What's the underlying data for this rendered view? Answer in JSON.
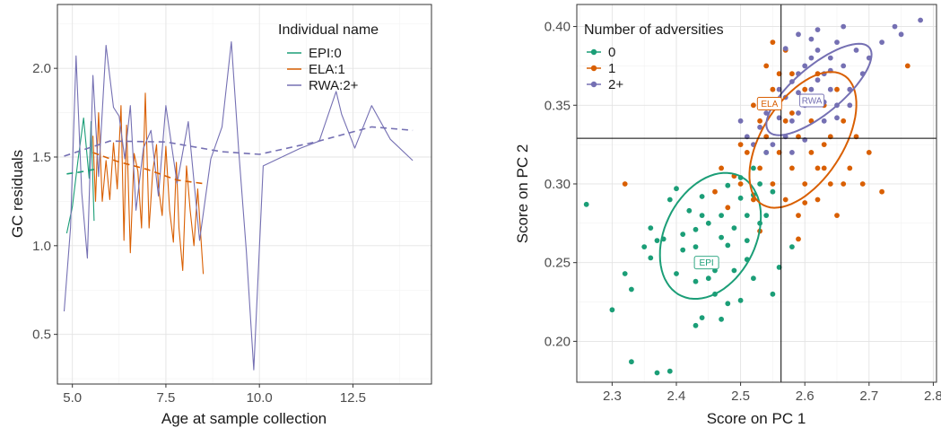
{
  "colors": {
    "EPI": "#1b9e77",
    "ELA": "#d95f02",
    "RWA": "#7570b3",
    "text": "#1a1a1a",
    "tick": "#4d4d4d",
    "grid": "#e3e3e3"
  },
  "chart_data": [
    {
      "type": "line",
      "xlabel": "Age at sample collection",
      "ylabel": "GC residuals",
      "xlim": [
        4.6,
        14.6
      ],
      "ylim": [
        0.22,
        2.36
      ],
      "xticks": [
        5.0,
        7.5,
        10.0,
        12.5
      ],
      "xtick_labels": [
        "5.0",
        "7.5",
        "10.0",
        "12.5"
      ],
      "yticks": [
        0.5,
        1.0,
        1.5,
        2.0
      ],
      "ytick_labels": [
        "0.5",
        "1.0",
        "1.5",
        "2.0"
      ],
      "grid": true,
      "legend": {
        "title": "Individual name",
        "position": "top-right"
      },
      "series": [
        {
          "name": "EPI:0",
          "color_key": "EPI",
          "x": [
            4.85,
            5.0,
            5.15,
            5.3,
            5.45,
            5.5,
            5.58
          ],
          "y": [
            1.07,
            1.22,
            1.48,
            1.72,
            1.38,
            1.7,
            1.14
          ],
          "trend_x": [
            4.85,
            5.2,
            5.58
          ],
          "trend_y": [
            1.405,
            1.415,
            1.43
          ]
        },
        {
          "name": "ELA:1",
          "color_key": "ELA",
          "x": [
            5.55,
            5.62,
            5.7,
            5.8,
            5.9,
            6.0,
            6.1,
            6.2,
            6.3,
            6.38,
            6.45,
            6.55,
            6.65,
            6.75,
            6.85,
            6.95,
            7.05,
            7.15,
            7.25,
            7.3,
            7.4,
            7.5,
            7.6,
            7.7,
            7.78,
            7.85,
            7.95,
            8.05,
            8.15,
            8.25,
            8.35,
            8.5
          ],
          "y": [
            1.62,
            1.25,
            1.75,
            1.25,
            1.48,
            1.26,
            1.58,
            1.32,
            1.79,
            1.03,
            1.68,
            0.96,
            1.52,
            1.42,
            1.1,
            1.86,
            1.1,
            1.42,
            1.57,
            1.33,
            1.17,
            1.56,
            1.2,
            1.02,
            1.47,
            1.1,
            0.86,
            1.45,
            1.2,
            1.0,
            1.32,
            0.84
          ],
          "trend_x": [
            5.55,
            6.2,
            7.0,
            7.8,
            8.5
          ],
          "trend_y": [
            1.525,
            1.475,
            1.43,
            1.37,
            1.35
          ]
        },
        {
          "name": "RWA:2+",
          "color_key": "RWA",
          "x": [
            4.78,
            4.95,
            5.1,
            5.25,
            5.4,
            5.55,
            5.7,
            5.9,
            6.1,
            6.25,
            6.4,
            6.55,
            6.7,
            6.9,
            7.1,
            7.3,
            7.5,
            7.8,
            8.1,
            8.4,
            8.7,
            9.0,
            9.25,
            9.45,
            9.65,
            9.85,
            10.1,
            10.6,
            11.1,
            11.6,
            12.05,
            12.2,
            12.55,
            13.0,
            13.5,
            14.1
          ],
          "y": [
            0.63,
            1.1,
            2.07,
            1.3,
            0.93,
            1.96,
            1.39,
            2.13,
            1.78,
            1.73,
            1.49,
            1.79,
            1.2,
            1.55,
            1.65,
            1.28,
            1.79,
            1.35,
            1.7,
            1.03,
            1.49,
            1.67,
            2.15,
            1.53,
            0.97,
            0.3,
            1.45,
            1.5,
            1.55,
            1.59,
            1.87,
            1.74,
            1.55,
            1.79,
            1.6,
            1.48
          ],
          "trend_x": [
            4.78,
            6.0,
            7.5,
            9.0,
            10.0,
            11.5,
            13.0,
            14.1
          ],
          "trend_y": [
            1.505,
            1.59,
            1.585,
            1.53,
            1.515,
            1.585,
            1.67,
            1.65
          ]
        }
      ]
    },
    {
      "type": "scatter",
      "xlabel": "Score on PC 1",
      "ylabel": "Score on PC 2",
      "xlim": [
        2.245,
        2.805
      ],
      "ylim": [
        0.174,
        0.414
      ],
      "xticks": [
        2.3,
        2.4,
        2.5,
        2.6,
        2.7,
        2.8
      ],
      "xtick_labels": [
        "2.3",
        "2.4",
        "2.5",
        "2.6",
        "2.7",
        "2.8"
      ],
      "yticks": [
        0.2,
        0.25,
        0.3,
        0.35,
        0.4
      ],
      "ytick_labels": [
        "0.20",
        "0.25",
        "0.30",
        "0.35",
        "0.40"
      ],
      "grid": true,
      "vline": 2.563,
      "hline": 0.329,
      "legend": {
        "title": "Number of adversities",
        "position": "top-left"
      },
      "series": [
        {
          "name": "0",
          "color_key": "EPI",
          "ellipse_label": "EPI",
          "label_xy": [
            2.447,
            0.25
          ],
          "ellipse": {
            "cx": 2.453,
            "cy": 0.267,
            "rx": 0.1,
            "ry": 0.07,
            "angle_deg": 60
          },
          "points": [
            [
              2.26,
              0.287
            ],
            [
              2.33,
              0.187
            ],
            [
              2.37,
              0.18
            ],
            [
              2.39,
              0.181
            ],
            [
              2.36,
              0.272
            ],
            [
              2.37,
              0.264
            ],
            [
              2.38,
              0.265
            ],
            [
              2.39,
              0.29
            ],
            [
              2.4,
              0.297
            ],
            [
              2.41,
              0.258
            ],
            [
              2.42,
              0.283
            ],
            [
              2.43,
              0.26
            ],
            [
              2.43,
              0.271
            ],
            [
              2.44,
              0.292
            ],
            [
              2.44,
              0.28
            ],
            [
              2.45,
              0.275
            ],
            [
              2.46,
              0.252
            ],
            [
              2.47,
              0.266
            ],
            [
              2.47,
              0.28
            ],
            [
              2.48,
              0.261
            ],
            [
              2.48,
              0.299
            ],
            [
              2.49,
              0.272
            ],
            [
              2.5,
              0.304
            ],
            [
              2.5,
              0.291
            ],
            [
              2.51,
              0.264
            ],
            [
              2.51,
              0.28
            ],
            [
              2.52,
              0.31
            ],
            [
              2.52,
              0.293
            ],
            [
              2.53,
              0.275
            ],
            [
              2.53,
              0.3
            ],
            [
              2.54,
              0.32
            ],
            [
              2.54,
              0.28
            ],
            [
              2.55,
              0.295
            ],
            [
              2.45,
              0.24
            ],
            [
              2.46,
              0.23
            ],
            [
              2.44,
              0.215
            ],
            [
              2.43,
              0.21
            ],
            [
              2.47,
              0.214
            ],
            [
              2.48,
              0.224
            ],
            [
              2.5,
              0.226
            ],
            [
              2.49,
              0.245
            ],
            [
              2.52,
              0.24
            ],
            [
              2.55,
              0.23
            ],
            [
              2.58,
              0.26
            ],
            [
              2.32,
              0.243
            ],
            [
              2.35,
              0.26
            ],
            [
              2.4,
              0.243
            ],
            [
              2.43,
              0.238
            ],
            [
              2.46,
              0.245
            ],
            [
              2.51,
              0.252
            ],
            [
              2.41,
              0.268
            ],
            [
              2.36,
              0.253
            ],
            [
              2.3,
              0.22
            ],
            [
              2.33,
              0.233
            ],
            [
              2.56,
              0.247
            ]
          ]
        },
        {
          "name": "1",
          "color_key": "ELA",
          "ellipse_label": "ELA",
          "label_xy": [
            2.545,
            0.351
          ],
          "ellipse": {
            "cx": 2.597,
            "cy": 0.328,
            "rx": 0.115,
            "ry": 0.062,
            "angle_deg": 55
          },
          "points": [
            [
              2.32,
              0.3
            ],
            [
              2.46,
              0.295
            ],
            [
              2.48,
              0.285
            ],
            [
              2.49,
              0.305
            ],
            [
              2.5,
              0.3
            ],
            [
              2.51,
              0.32
            ],
            [
              2.52,
              0.29
            ],
            [
              2.53,
              0.34
            ],
            [
              2.53,
              0.31
            ],
            [
              2.54,
              0.33
            ],
            [
              2.55,
              0.36
            ],
            [
              2.55,
              0.3
            ],
            [
              2.56,
              0.35
            ],
            [
              2.56,
              0.32
            ],
            [
              2.57,
              0.34
            ],
            [
              2.57,
              0.29
            ],
            [
              2.58,
              0.37
            ],
            [
              2.58,
              0.31
            ],
            [
              2.59,
              0.33
            ],
            [
              2.59,
              0.28
            ],
            [
              2.6,
              0.36
            ],
            [
              2.6,
              0.3
            ],
            [
              2.61,
              0.34
            ],
            [
              2.61,
              0.32
            ],
            [
              2.62,
              0.29
            ],
            [
              2.62,
              0.37
            ],
            [
              2.63,
              0.31
            ],
            [
              2.63,
              0.35
            ],
            [
              2.64,
              0.33
            ],
            [
              2.64,
              0.3
            ],
            [
              2.65,
              0.36
            ],
            [
              2.65,
              0.28
            ],
            [
              2.66,
              0.34
            ],
            [
              2.67,
              0.31
            ],
            [
              2.68,
              0.33
            ],
            [
              2.69,
              0.3
            ],
            [
              2.7,
              0.32
            ],
            [
              2.72,
              0.295
            ],
            [
              2.76,
              0.375
            ],
            [
              2.54,
              0.375
            ],
            [
              2.55,
              0.39
            ],
            [
              2.57,
              0.385
            ],
            [
              2.56,
              0.37
            ],
            [
              2.52,
              0.35
            ],
            [
              2.5,
              0.325
            ],
            [
              2.47,
              0.31
            ],
            [
              2.58,
              0.345
            ],
            [
              2.61,
              0.355
            ],
            [
              2.63,
              0.325
            ],
            [
              2.53,
              0.27
            ],
            [
              2.59,
              0.265
            ],
            [
              2.6,
              0.288
            ],
            [
              2.66,
              0.3
            ],
            [
              2.62,
              0.31
            ]
          ]
        },
        {
          "name": "2+",
          "color_key": "RWA",
          "ellipse_label": "RWA",
          "label_xy": [
            2.611,
            0.353
          ],
          "ellipse": {
            "cx": 2.622,
            "cy": 0.36,
            "rx": 0.1,
            "ry": 0.036,
            "angle_deg": 38
          },
          "points": [
            [
              2.5,
              0.34
            ],
            [
              2.51,
              0.33
            ],
            [
              2.52,
              0.325
            ],
            [
              2.53,
              0.336
            ],
            [
              2.54,
              0.345
            ],
            [
              2.55,
              0.35
            ],
            [
              2.55,
              0.325
            ],
            [
              2.56,
              0.36
            ],
            [
              2.57,
              0.355
            ],
            [
              2.57,
              0.33
            ],
            [
              2.58,
              0.365
            ],
            [
              2.58,
              0.34
            ],
            [
              2.59,
              0.37
            ],
            [
              2.59,
              0.345
            ],
            [
              2.6,
              0.375
            ],
            [
              2.6,
              0.35
            ],
            [
              2.61,
              0.38
            ],
            [
              2.61,
              0.36
            ],
            [
              2.62,
              0.385
            ],
            [
              2.62,
              0.355
            ],
            [
              2.63,
              0.37
            ],
            [
              2.63,
              0.34
            ],
            [
              2.64,
              0.38
            ],
            [
              2.64,
              0.36
            ],
            [
              2.65,
              0.39
            ],
            [
              2.65,
              0.35
            ],
            [
              2.66,
              0.375
            ],
            [
              2.67,
              0.36
            ],
            [
              2.68,
              0.385
            ],
            [
              2.69,
              0.37
            ],
            [
              2.7,
              0.38
            ],
            [
              2.72,
              0.39
            ],
            [
              2.74,
              0.4
            ],
            [
              2.75,
              0.395
            ],
            [
              2.78,
              0.404
            ],
            [
              2.57,
              0.386
            ],
            [
              2.59,
              0.395
            ],
            [
              2.61,
              0.392
            ],
            [
              2.62,
              0.398
            ],
            [
              2.66,
              0.4
            ],
            [
              2.58,
              0.32
            ],
            [
              2.6,
              0.328
            ],
            [
              2.63,
              0.352
            ],
            [
              2.65,
              0.342
            ],
            [
              2.67,
              0.35
            ],
            [
              2.54,
              0.32
            ],
            [
              2.56,
              0.342
            ],
            [
              2.59,
              0.358
            ],
            [
              2.62,
              0.366
            ],
            [
              2.64,
              0.372
            ]
          ]
        }
      ]
    }
  ]
}
